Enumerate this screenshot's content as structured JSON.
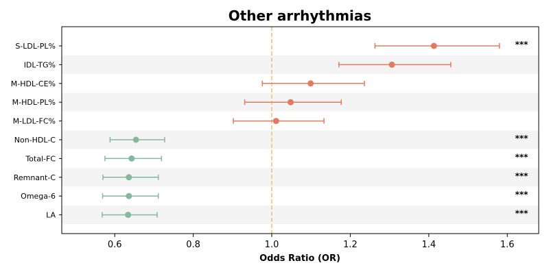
{
  "chart_data": {
    "type": "scatter",
    "title": "Other arrhythmias",
    "xlabel": "Odds Ratio (OR)",
    "ylabel": "",
    "xlim": [
      0.465,
      1.68
    ],
    "xticks": [
      "0.6",
      "0.8",
      "1.0",
      "1.2",
      "1.4",
      "1.6"
    ],
    "reference_line": 1.0,
    "colors": {
      "risk": "#e07b62",
      "protective": "#85b89e",
      "reference": "#f2c27c",
      "band": "#f4f4f4",
      "axis": "#000000"
    },
    "rows": [
      {
        "label": "S-LDL-PL%",
        "or": 1.413,
        "lower": 1.263,
        "upper": 1.58,
        "sig": "***",
        "group": "risk"
      },
      {
        "label": "IDL-TG%",
        "or": 1.306,
        "lower": 1.171,
        "upper": 1.456,
        "sig": "",
        "group": "risk"
      },
      {
        "label": "M-HDL-CE%",
        "or": 1.099,
        "lower": 0.976,
        "upper": 1.236,
        "sig": "",
        "group": "risk"
      },
      {
        "label": "M-HDL-PL%",
        "or": 1.048,
        "lower": 0.931,
        "upper": 1.177,
        "sig": "",
        "group": "risk"
      },
      {
        "label": "M-LDL-FC%",
        "or": 1.011,
        "lower": 0.902,
        "upper": 1.133,
        "sig": "",
        "group": "risk"
      },
      {
        "label": "Non-HDL-C",
        "or": 0.654,
        "lower": 0.588,
        "upper": 0.727,
        "sig": "***",
        "group": "protective"
      },
      {
        "label": "Total-FC",
        "or": 0.643,
        "lower": 0.575,
        "upper": 0.719,
        "sig": "***",
        "group": "protective"
      },
      {
        "label": "Remnant-C",
        "or": 0.636,
        "lower": 0.57,
        "upper": 0.711,
        "sig": "***",
        "group": "protective"
      },
      {
        "label": "Omega-6",
        "or": 0.636,
        "lower": 0.569,
        "upper": 0.711,
        "sig": "***",
        "group": "protective"
      },
      {
        "label": "LA",
        "or": 0.634,
        "lower": 0.568,
        "upper": 0.708,
        "sig": "***",
        "group": "protective"
      }
    ]
  }
}
